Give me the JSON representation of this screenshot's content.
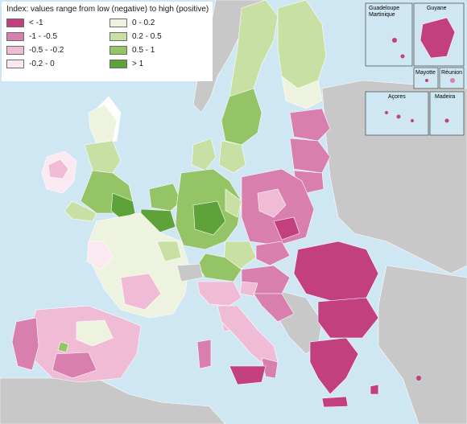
{
  "legend": {
    "title": "Index: values range from low (negative) to high (positive)",
    "classes": [
      {
        "label": "< -1",
        "color": "#c2407e"
      },
      {
        "label": "0 - 0.2",
        "color": "#eef3df"
      },
      {
        "label": "-1 - -0.5",
        "color": "#d97fad"
      },
      {
        "label": "0.2 - 0.5",
        "color": "#c9e0a5"
      },
      {
        "label": "-0.5 - -0.2",
        "color": "#f0bcd5"
      },
      {
        "label": "0.5 - 1",
        "color": "#94c465"
      },
      {
        "label": "-0.2 - 0",
        "color": "#fbe9f1"
      },
      {
        "label": "> 1",
        "color": "#5ea23a"
      }
    ]
  },
  "insets": {
    "guadeloupe_martinique": "Guadeloupe\nMartinique",
    "guyane": "Guyane",
    "mayotte": "Mayotte",
    "reunion": "Réunion",
    "acores": "Açores",
    "madeira": "Madeira"
  },
  "colors": {
    "sea": "#cfe6f3",
    "non_eu_land": "#c8c8c8",
    "no_data": "#d9d9d9",
    "border": "#ffffff"
  }
}
